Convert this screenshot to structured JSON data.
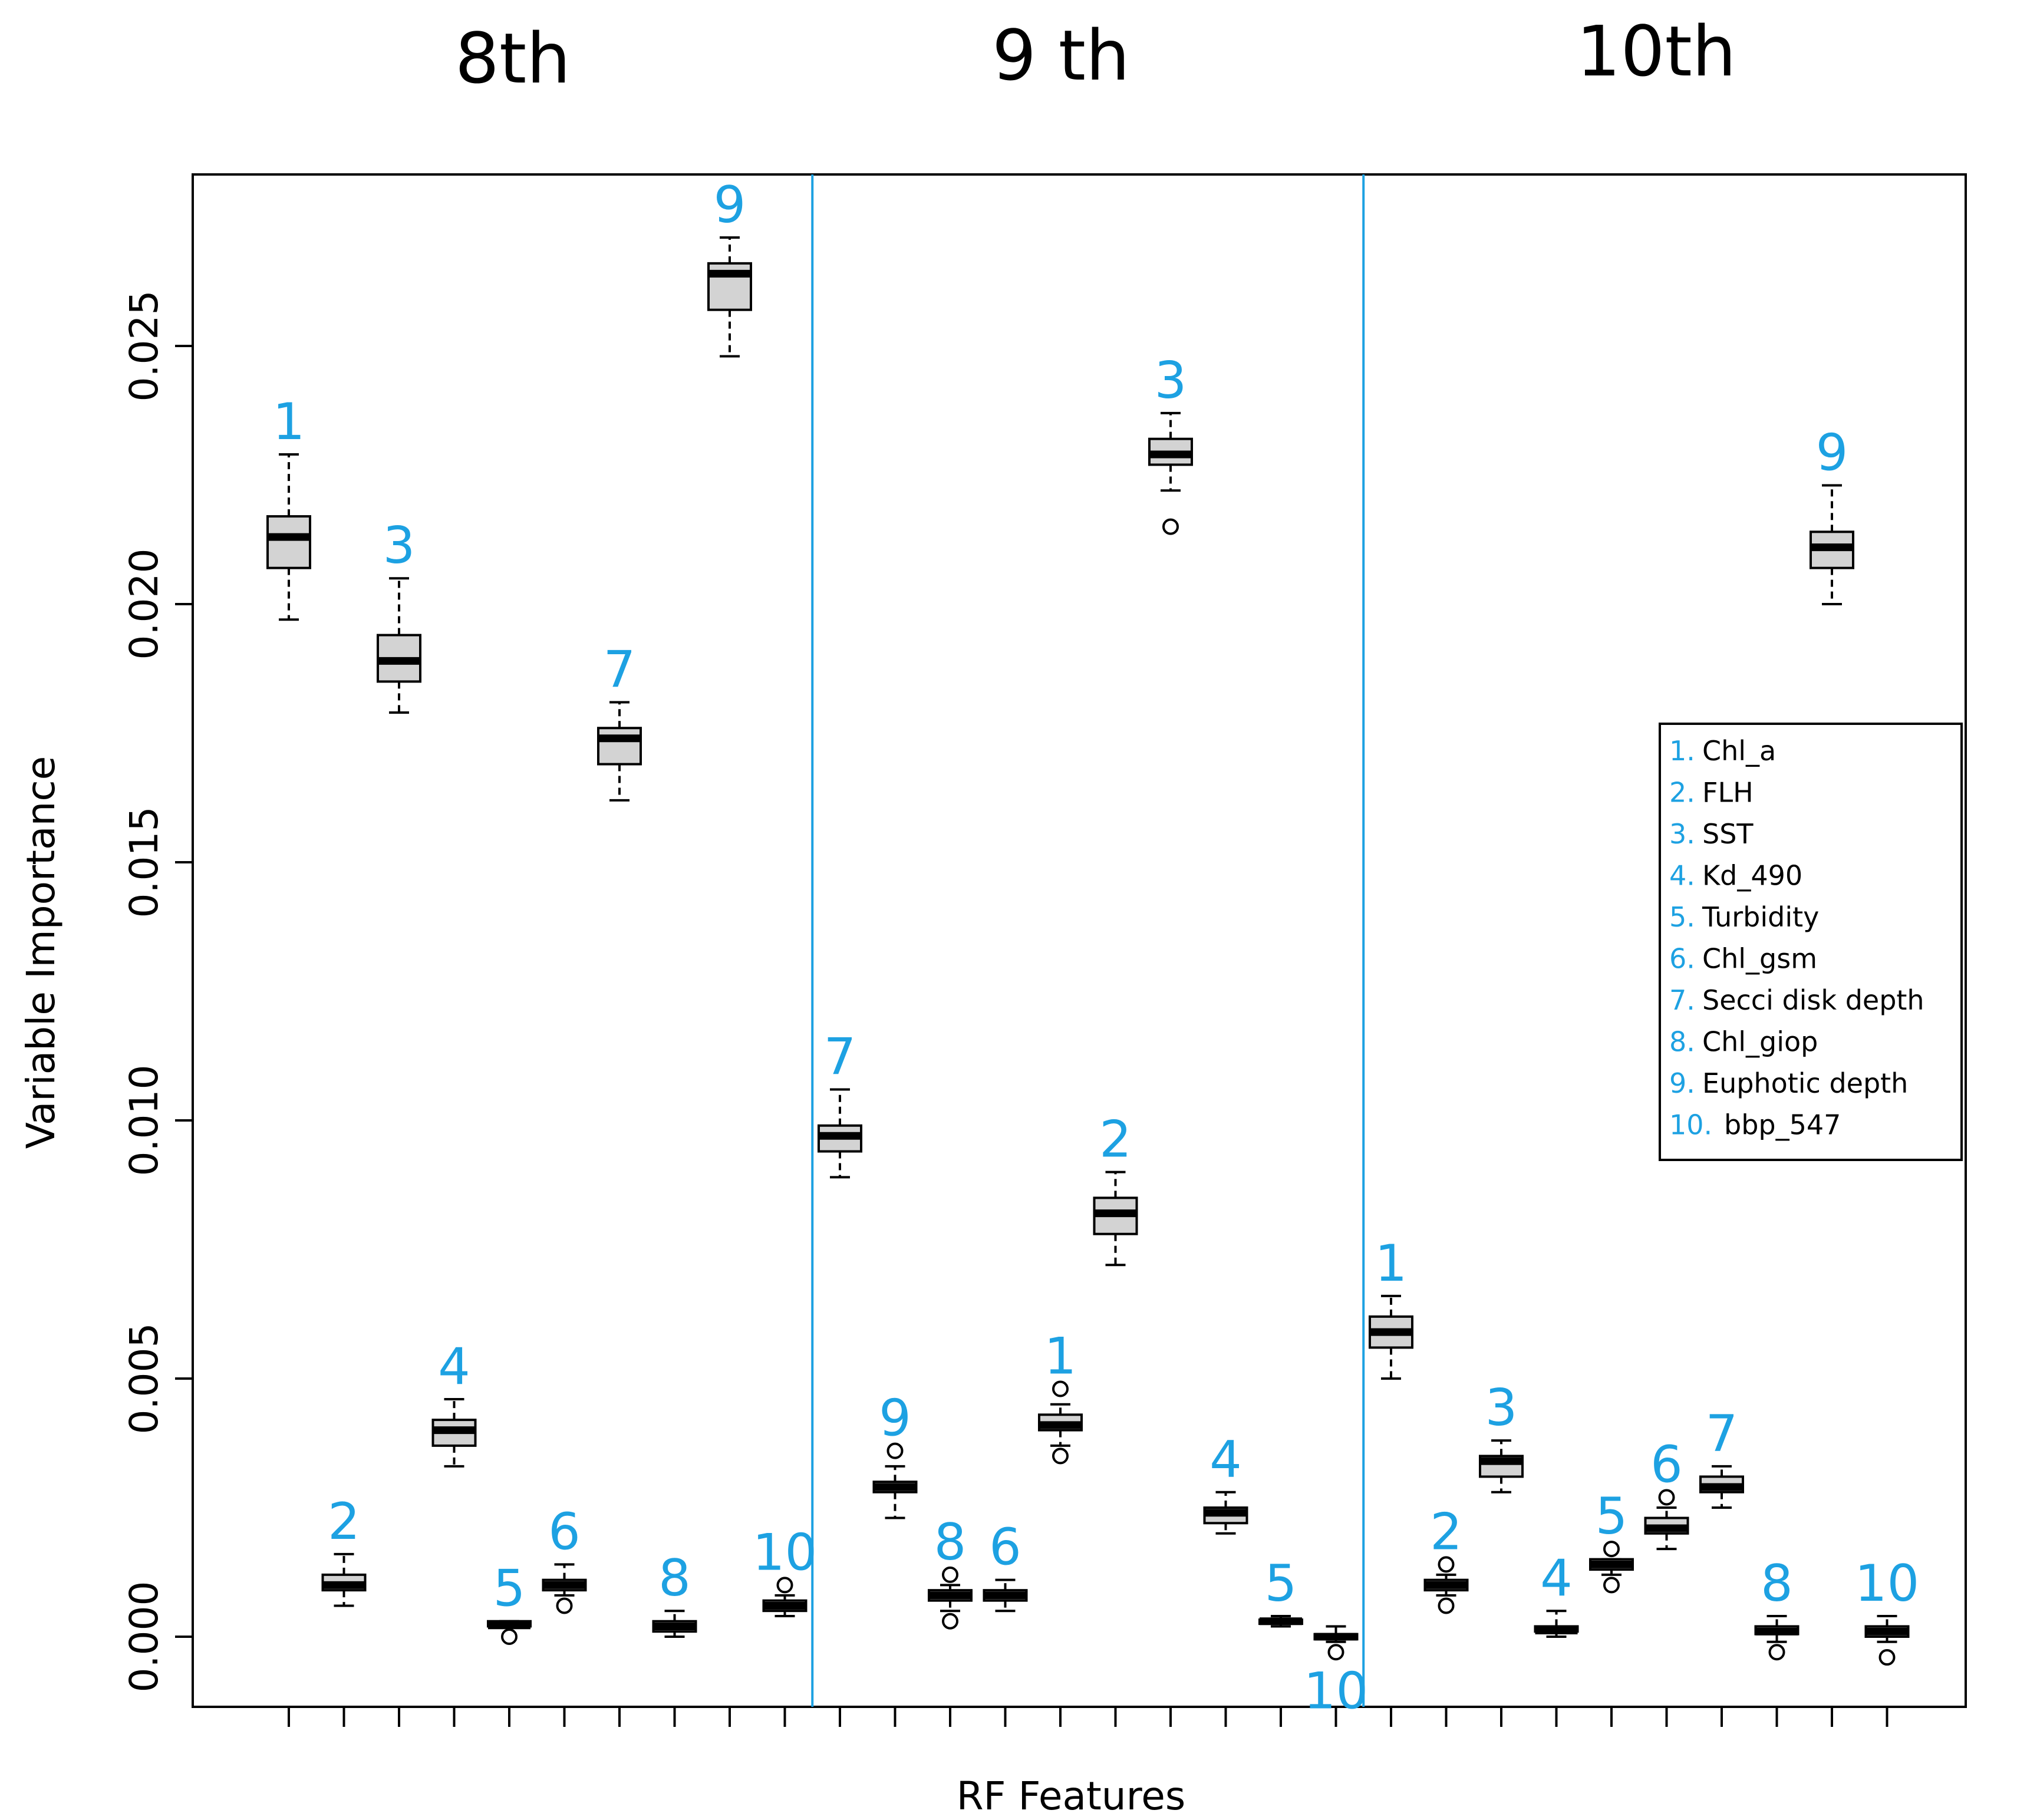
{
  "chart_data": {
    "type": "boxplot",
    "group_titles": [
      "8th",
      "9 th",
      "10th"
    ],
    "xlabel": "RF Features",
    "ylabel": "Variable Importance",
    "ylim": [
      -0.0015,
      0.0282
    ],
    "yticks": [
      0.0,
      0.005,
      0.01,
      0.015,
      0.02,
      0.025
    ],
    "ytick_labels": [
      "0.000",
      "0.005",
      "0.010",
      "0.015",
      "0.020",
      "0.025"
    ],
    "separators": [
      10.5,
      20.5
    ],
    "colors": {
      "label": "#1da1e2",
      "box_fill": "#d3d3d3",
      "box_stroke": "#000000",
      "separator": "#1da1e2"
    },
    "legend": {
      "position": "right",
      "items": [
        {
          "num": "1.",
          "text": "Chl_a"
        },
        {
          "num": "2.",
          "text": "FLH"
        },
        {
          "num": "3.",
          "text": "SST"
        },
        {
          "num": "4.",
          "text": "Kd_490"
        },
        {
          "num": "5.",
          "text": "Turbidity"
        },
        {
          "num": "6.",
          "text": "Chl_gsm"
        },
        {
          "num": "7.",
          "text": "Secci disk depth"
        },
        {
          "num": "8.",
          "text": "Chl_giop"
        },
        {
          "num": "9.",
          "text": "Euphotic depth"
        },
        {
          "num": "10.",
          "text": "bbp_547"
        }
      ]
    },
    "boxes": [
      {
        "pos": 1,
        "label": "1",
        "min": 0.0197,
        "q1": 0.0207,
        "median": 0.0213,
        "q3": 0.0217,
        "max": 0.0229,
        "outliers": []
      },
      {
        "pos": 2,
        "label": "2",
        "min": 0.0006,
        "q1": 0.0009,
        "median": 0.001,
        "q3": 0.0012,
        "max": 0.0016,
        "outliers": []
      },
      {
        "pos": 3,
        "label": "3",
        "min": 0.0179,
        "q1": 0.0185,
        "median": 0.0189,
        "q3": 0.0194,
        "max": 0.0205,
        "outliers": []
      },
      {
        "pos": 4,
        "label": "4",
        "min": 0.0033,
        "q1": 0.0037,
        "median": 0.004,
        "q3": 0.0042,
        "max": 0.0046,
        "outliers": []
      },
      {
        "pos": 5,
        "label": "5",
        "min": 0.0002,
        "q1": 0.0002,
        "median": 0.00022,
        "q3": 0.0003,
        "max": 0.0003,
        "outliers": [
          0.0
        ]
      },
      {
        "pos": 6,
        "label": "6",
        "min": 0.0008,
        "q1": 0.0009,
        "median": 0.001,
        "q3": 0.0011,
        "max": 0.0014,
        "outliers": [
          0.0006
        ]
      },
      {
        "pos": 7,
        "label": "7",
        "min": 0.0162,
        "q1": 0.0169,
        "median": 0.0174,
        "q3": 0.0176,
        "max": 0.0181,
        "outliers": []
      },
      {
        "pos": 8,
        "label": "8",
        "min": 0.0,
        "q1": 0.0001,
        "median": 0.0002,
        "q3": 0.0003,
        "max": 0.0005,
        "outliers": []
      },
      {
        "pos": 9,
        "label": "9",
        "min": 0.0248,
        "q1": 0.0257,
        "median": 0.0264,
        "q3": 0.0266,
        "max": 0.0271,
        "outliers": []
      },
      {
        "pos": 10,
        "label": "10",
        "min": 0.0004,
        "q1": 0.0005,
        "median": 0.0006,
        "q3": 0.0007,
        "max": 0.0008,
        "outliers": [
          0.001
        ]
      },
      {
        "pos": 11,
        "label": "7",
        "min": 0.0089,
        "q1": 0.0094,
        "median": 0.0097,
        "q3": 0.0099,
        "max": 0.0106,
        "outliers": []
      },
      {
        "pos": 12,
        "label": "9",
        "min": 0.0023,
        "q1": 0.0028,
        "median": 0.0029,
        "q3": 0.003,
        "max": 0.0033,
        "outliers": [
          0.0036
        ]
      },
      {
        "pos": 13,
        "label": "8",
        "min": 0.0005,
        "q1": 0.0007,
        "median": 0.0008,
        "q3": 0.0009,
        "max": 0.001,
        "outliers": [
          0.0012,
          0.0003
        ]
      },
      {
        "pos": 14,
        "label": "6",
        "min": 0.0005,
        "q1": 0.0007,
        "median": 0.0008,
        "q3": 0.0009,
        "max": 0.0011,
        "outliers": []
      },
      {
        "pos": 15,
        "label": "1",
        "min": 0.0037,
        "q1": 0.004,
        "median": 0.0041,
        "q3": 0.0043,
        "max": 0.0045,
        "outliers": [
          0.0048,
          0.0035
        ]
      },
      {
        "pos": 16,
        "label": "2",
        "min": 0.0072,
        "q1": 0.0078,
        "median": 0.0082,
        "q3": 0.0085,
        "max": 0.009,
        "outliers": []
      },
      {
        "pos": 17,
        "label": "3",
        "min": 0.0222,
        "q1": 0.0227,
        "median": 0.0229,
        "q3": 0.0232,
        "max": 0.0237,
        "outliers": [
          0.0215
        ]
      },
      {
        "pos": 18,
        "label": "4",
        "min": 0.002,
        "q1": 0.0022,
        "median": 0.0024,
        "q3": 0.0025,
        "max": 0.0028,
        "outliers": []
      },
      {
        "pos": 19,
        "label": "5",
        "min": 0.0002,
        "q1": 0.00025,
        "median": 0.0003,
        "q3": 0.00033,
        "max": 0.0004,
        "outliers": []
      },
      {
        "pos": 20,
        "label": "10",
        "min": -0.0001,
        "q1": -5e-05,
        "median": 0.0,
        "q3": 5e-05,
        "max": 0.0002,
        "outliers": [
          -0.0003
        ]
      },
      {
        "pos": 21,
        "label": "1",
        "min": 0.005,
        "q1": 0.0056,
        "median": 0.0059,
        "q3": 0.0062,
        "max": 0.0066,
        "outliers": []
      },
      {
        "pos": 22,
        "label": "2",
        "min": 0.0008,
        "q1": 0.0009,
        "median": 0.001,
        "q3": 0.0011,
        "max": 0.0012,
        "outliers": [
          0.0014,
          0.0006
        ]
      },
      {
        "pos": 23,
        "label": "3",
        "min": 0.0028,
        "q1": 0.0031,
        "median": 0.0034,
        "q3": 0.0035,
        "max": 0.0038,
        "outliers": []
      },
      {
        "pos": 24,
        "label": "4",
        "min": 0.0,
        "q1": 0.0001,
        "median": 0.00012,
        "q3": 0.0002,
        "max": 0.0005,
        "outliers": []
      },
      {
        "pos": 25,
        "label": "5",
        "min": 0.0012,
        "q1": 0.0013,
        "median": 0.0014,
        "q3": 0.0015,
        "max": 0.0015,
        "outliers": [
          0.0017,
          0.001
        ]
      },
      {
        "pos": 26,
        "label": "6",
        "min": 0.0017,
        "q1": 0.002,
        "median": 0.0021,
        "q3": 0.0023,
        "max": 0.0025,
        "outliers": [
          0.0027
        ]
      },
      {
        "pos": 27,
        "label": "7",
        "min": 0.0025,
        "q1": 0.0028,
        "median": 0.0029,
        "q3": 0.0031,
        "max": 0.0033,
        "outliers": []
      },
      {
        "pos": 28,
        "label": "8",
        "min": -0.0001,
        "q1": 5e-05,
        "median": 0.0001,
        "q3": 0.0002,
        "max": 0.0004,
        "outliers": [
          -0.0003
        ]
      },
      {
        "pos": 29,
        "label": "9",
        "min": 0.02,
        "q1": 0.0207,
        "median": 0.0211,
        "q3": 0.0214,
        "max": 0.0223,
        "outliers": []
      },
      {
        "pos": 30,
        "label": "10",
        "min": -0.0001,
        "q1": 0.0,
        "median": 0.0001,
        "q3": 0.0002,
        "max": 0.0004,
        "outliers": [
          -0.0004
        ]
      }
    ]
  }
}
